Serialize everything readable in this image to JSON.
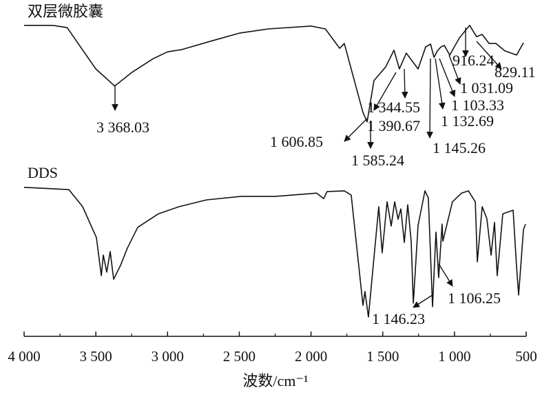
{
  "chart_data": {
    "type": "line",
    "xlabel": "波数/cm⁻¹",
    "ylabel": "",
    "xlim": [
      4000,
      500
    ],
    "x_reversed": true,
    "ylim": [
      0,
      100
    ],
    "y_ticks_shown": false,
    "grid": false,
    "x_ticks": [
      4000,
      3500,
      3000,
      2500,
      2000,
      1500,
      1000,
      500
    ],
    "x_tick_labels": [
      "4 000",
      "3 500",
      "3 000",
      "2 500",
      "2 000",
      "1 500",
      "1 000",
      "500"
    ],
    "line_color": "#111111",
    "series": [
      {
        "name": "双层微胶囊",
        "x": [
          4000,
          3800,
          3700,
          3600,
          3500,
          3368,
          3250,
          3100,
          3000,
          2900,
          2700,
          2500,
          2300,
          2000,
          1900,
          1800,
          1768,
          1638,
          1609,
          1561,
          1480,
          1422,
          1384,
          1336,
          1254,
          1201,
          1167,
          1143,
          1119,
          1095,
          1071,
          1033,
          966,
          894,
          846,
          807,
          759,
          711,
          649,
          567,
          519
        ],
        "y": [
          96.4,
          96.4,
          95.7,
          89.3,
          82.9,
          77.6,
          81.8,
          86.1,
          88.2,
          88.9,
          91.5,
          94,
          95.3,
          96.2,
          95.3,
          89.3,
          90.8,
          69.4,
          66.5,
          79.3,
          83.5,
          88.7,
          82.9,
          87.8,
          82.9,
          89.7,
          90.6,
          86.5,
          88.5,
          89.7,
          90.2,
          87.2,
          92.5,
          96.4,
          92.9,
          93.6,
          90.8,
          90.8,
          88.5,
          87.2,
          91
        ]
      },
      {
        "name": "DDS",
        "x": [
          4000,
          3688,
          3592,
          3496,
          3462,
          3448,
          3424,
          3400,
          3376,
          3352,
          3328,
          3280,
          3208,
          3064,
          2920,
          2728,
          2488,
          2248,
          1960,
          1912,
          1888,
          1768,
          1720,
          1638,
          1624,
          1600,
          1528,
          1504,
          1470,
          1441,
          1417,
          1393,
          1374,
          1350,
          1326,
          1302,
          1287,
          1254,
          1206,
          1182,
          1153,
          1129,
          1110,
          1086,
          1081,
          1014,
          951,
          903,
          855,
          841,
          807,
          774,
          745,
          721,
          702,
          663,
          591,
          567,
          553,
          519,
          505
        ],
        "y": [
          46.2,
          45.5,
          40.2,
          30.6,
          18.8,
          25.2,
          19.9,
          26.3,
          17.7,
          19.9,
          22,
          27.4,
          33.8,
          38,
          40.2,
          42.3,
          43.4,
          43.4,
          44.4,
          42.7,
          44.9,
          45.1,
          43.8,
          9.6,
          13.9,
          6,
          40.2,
          25.9,
          41.7,
          34.2,
          41.7,
          36.3,
          39.5,
          29.1,
          40.8,
          29.5,
          10.3,
          34.4,
          45.1,
          42.9,
          9.2,
          32.3,
          18.2,
          34.8,
          29.5,
          41.7,
          44.4,
          45.1,
          41.7,
          23.1,
          40.2,
          36.5,
          25.2,
          35.3,
          18.8,
          38,
          39.1,
          21.6,
          12.8,
          33.1,
          34.8
        ]
      }
    ],
    "annotations": [
      {
        "text": "3 368.03",
        "series": "双层微胶囊",
        "x": 3368.03
      },
      {
        "text": "1 606.85",
        "series": "双层微胶囊",
        "x": 1606.85
      },
      {
        "text": "1 585.24",
        "series": "双层微胶囊",
        "x": 1585.24
      },
      {
        "text": "1 344.55",
        "series": "双层微胶囊",
        "x": 1344.55
      },
      {
        "text": "1 390.67",
        "series": "双层微胶囊",
        "x": 1390.67
      },
      {
        "text": "1 145.26",
        "series": "双层微胶囊",
        "x": 1145.26
      },
      {
        "text": "1 132.69",
        "series": "双层微胶囊",
        "x": 1132.69
      },
      {
        "text": "1 103.33",
        "series": "双层微胶囊",
        "x": 1103.33
      },
      {
        "text": "1 031.09",
        "series": "双层微胶囊",
        "x": 1031.09
      },
      {
        "text": "916.24",
        "series": "双层微胶囊",
        "x": 916.24
      },
      {
        "text": "829.11",
        "series": "双层微胶囊",
        "x": 829.11
      },
      {
        "text": "1 146.23",
        "series": "DDS",
        "x": 1146.23
      },
      {
        "text": "1 106.25",
        "series": "DDS",
        "x": 1106.25
      }
    ]
  }
}
